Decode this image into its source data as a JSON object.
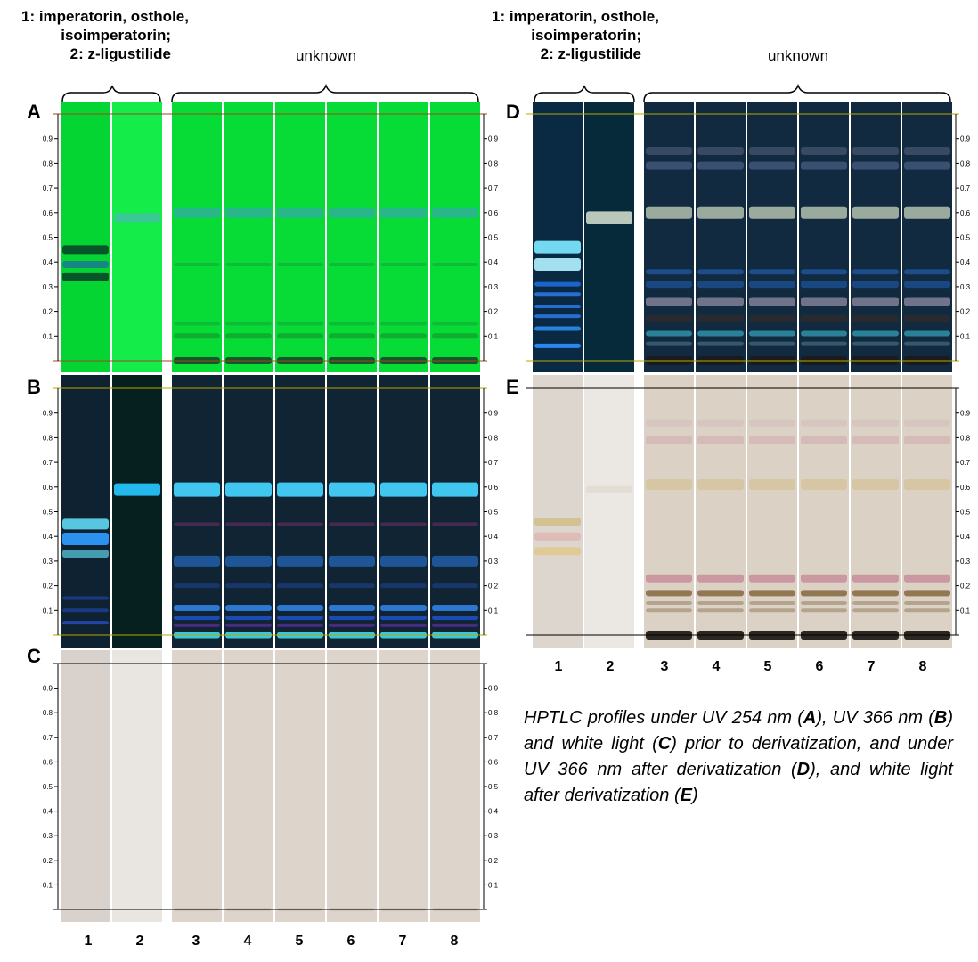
{
  "headers": {
    "standards_lines": [
      "1: imperatorin, osthole,",
      "isoimperatorin;",
      "2: z-ligustilide"
    ],
    "unknown": "unknown"
  },
  "panels": [
    {
      "letter": "A",
      "condition": "UV 254 nm",
      "plate_color": "#06dd36",
      "lane_colors": [
        "#05d533",
        "#14ec4a",
        "#07dc36",
        "#07dc36",
        "#07dc36",
        "#07dc36",
        "#07dc36",
        "#07dc36"
      ]
    },
    {
      "letter": "B",
      "condition": "UV 366 nm",
      "plate_color": "#0e2330",
      "lane_colors": [
        "#0f2232",
        "#05201e",
        "#102434",
        "#102434",
        "#102434",
        "#102434",
        "#102434",
        "#102434"
      ]
    },
    {
      "letter": "C",
      "condition": "white light",
      "plate_color": "#ddd5ce",
      "lane_colors": [
        "#d9d2cc",
        "#e9e5e1",
        "#ddd4cc",
        "#ddd4cc",
        "#ddd4cc",
        "#ddd4cc",
        "#ddd4cc",
        "#ddd4cc"
      ]
    },
    {
      "letter": "D",
      "condition": "UV 366 nm after derivatization",
      "plate_color": "#0c2435",
      "lane_colors": [
        "#0a2a44",
        "#062a3a",
        "#112a40",
        "#112a40",
        "#112a40",
        "#112a40",
        "#112a40",
        "#112a40"
      ]
    },
    {
      "letter": "E",
      "condition": "white light after derivatization",
      "plate_color": "#dcd3ca",
      "lane_colors": [
        "#ddd6ce",
        "#ebe7e3",
        "#dcd1c5",
        "#dcd1c5",
        "#dcd1c5",
        "#dcd1c5",
        "#dcd1c5",
        "#dcd1c5"
      ]
    }
  ],
  "rf_ticks": [
    "0.1",
    "0.2",
    "0.3",
    "0.4",
    "0.5",
    "0.6",
    "0.7",
    "0.8",
    "0.9"
  ],
  "lanes": [
    "1",
    "2",
    "3",
    "4",
    "5",
    "6",
    "7",
    "8"
  ],
  "caption": {
    "t1": "HPTLC profiles under UV 254 nm (",
    "b1": "A",
    "t2": "), UV 366 nm (",
    "b2": "B",
    "t3": ") and white light (",
    "b3": "C",
    "t4": ") prior to derivatization, and under UV 366 nm after derivatization (",
    "b4": "D",
    "t5": "), and white light after derivatization (",
    "b5": "E",
    "t6": ")"
  },
  "bands": {
    "A": {
      "std1": [
        {
          "rf": 0.45,
          "color": "#0a4a2a",
          "h": 10
        },
        {
          "rf": 0.39,
          "color": "#1a7f8a",
          "h": 8
        },
        {
          "rf": 0.34,
          "color": "#0a4a2a",
          "h": 10
        }
      ],
      "std2": [
        {
          "rf": 0.58,
          "color": "#3cc69a",
          "h": 10
        }
      ],
      "unk": [
        {
          "rf": 0.6,
          "color": "#2ab390",
          "h": 12
        },
        {
          "rf": 0.39,
          "color": "#10b838",
          "h": 4
        },
        {
          "rf": 0.15,
          "color": "#10b838",
          "h": 4
        },
        {
          "rf": 0.1,
          "color": "#10a830",
          "h": 6
        },
        {
          "rf": 0.0,
          "color": "#144a28",
          "h": 8
        }
      ]
    },
    "B": {
      "std1": [
        {
          "rf": 0.45,
          "color": "#5dd6ee",
          "h": 12
        },
        {
          "rf": 0.39,
          "color": "#2f9cff",
          "h": 14
        },
        {
          "rf": 0.33,
          "color": "#4aa7b8",
          "h": 9
        },
        {
          "rf": 0.15,
          "color": "#1a3d8a",
          "h": 4
        },
        {
          "rf": 0.1,
          "color": "#1a3d8a",
          "h": 4
        },
        {
          "rf": 0.05,
          "color": "#2449b0",
          "h": 4
        }
      ],
      "std2": [
        {
          "rf": 0.59,
          "color": "#27c5ff",
          "h": 14
        }
      ],
      "unk": [
        {
          "rf": 0.59,
          "color": "#45d6ff",
          "h": 16
        },
        {
          "rf": 0.45,
          "color": "#4a2a50",
          "h": 4
        },
        {
          "rf": 0.3,
          "color": "#1f5aa0",
          "h": 12
        },
        {
          "rf": 0.2,
          "color": "#19386e",
          "h": 5
        },
        {
          "rf": 0.11,
          "color": "#2e7fe0",
          "h": 7
        },
        {
          "rf": 0.07,
          "color": "#1d4fbf",
          "h": 5
        },
        {
          "rf": 0.04,
          "color": "#4a2e88",
          "h": 4
        },
        {
          "rf": 0.0,
          "color": "#3fd8e8",
          "h": 7
        }
      ]
    },
    "C": {
      "std1": [],
      "std2": [],
      "unk": [
        {
          "rf": 0.0,
          "color": "#c2b3a4",
          "h": 3
        }
      ]
    },
    "D": {
      "std1": [
        {
          "rf": 0.46,
          "color": "#7ee8ff",
          "h": 14
        },
        {
          "rf": 0.39,
          "color": "#b0f0ff",
          "h": 14
        },
        {
          "rf": 0.31,
          "color": "#1f68d8",
          "h": 5
        },
        {
          "rf": 0.27,
          "color": "#2a74e0",
          "h": 4
        },
        {
          "rf": 0.22,
          "color": "#2a74e0",
          "h": 4
        },
        {
          "rf": 0.18,
          "color": "#2a74e0",
          "h": 4
        },
        {
          "rf": 0.13,
          "color": "#2a8ae8",
          "h": 5
        },
        {
          "rf": 0.06,
          "color": "#2f8fff",
          "h": 5
        }
      ],
      "std2": [
        {
          "rf": 0.58,
          "color": "#c9d6c6",
          "h": 14
        }
      ],
      "unk": [
        {
          "rf": 0.85,
          "color": "#3c4d66",
          "h": 9
        },
        {
          "rf": 0.79,
          "color": "#3f5474",
          "h": 9
        },
        {
          "rf": 0.6,
          "color": "#a6b6a6",
          "h": 14
        },
        {
          "rf": 0.36,
          "color": "#1d4f90",
          "h": 6
        },
        {
          "rf": 0.31,
          "color": "#1a4a88",
          "h": 8
        },
        {
          "rf": 0.24,
          "color": "#7a7a90",
          "h": 10
        },
        {
          "rf": 0.17,
          "color": "#2a2a2e",
          "h": 8
        },
        {
          "rf": 0.11,
          "color": "#2d8aa0",
          "h": 6
        },
        {
          "rf": 0.07,
          "color": "#3a5c70",
          "h": 4
        },
        {
          "rf": 0.0,
          "color": "#1a1a1a",
          "h": 10
        }
      ]
    },
    "E": {
      "std1": [
        {
          "rf": 0.46,
          "color": "#d0c08e",
          "h": 9
        },
        {
          "rf": 0.4,
          "color": "#dcb8b4",
          "h": 9
        },
        {
          "rf": 0.34,
          "color": "#e0c890",
          "h": 9
        }
      ],
      "std2": [
        {
          "rf": 0.59,
          "color": "#e2dcd4",
          "h": 8
        }
      ],
      "unk": [
        {
          "rf": 0.86,
          "color": "#d6c4be",
          "h": 8
        },
        {
          "rf": 0.79,
          "color": "#d2b8b6",
          "h": 9
        },
        {
          "rf": 0.61,
          "color": "#d6c4a0",
          "h": 12
        },
        {
          "rf": 0.23,
          "color": "#c8929e",
          "h": 9
        },
        {
          "rf": 0.17,
          "color": "#8a7048",
          "h": 7
        },
        {
          "rf": 0.13,
          "color": "#b0a088",
          "h": 4
        },
        {
          "rf": 0.1,
          "color": "#b0a088",
          "h": 4
        },
        {
          "rf": 0.0,
          "color": "#1c1814",
          "h": 10
        }
      ]
    }
  }
}
